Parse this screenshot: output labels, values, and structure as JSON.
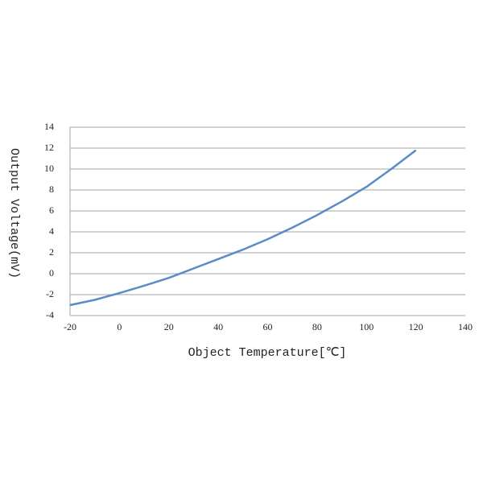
{
  "chart_data": {
    "type": "line",
    "x_label": "Object Temperature[℃]",
    "y_label": "Output Voltage(mV)",
    "x": [
      -20,
      -10,
      0,
      10,
      20,
      30,
      40,
      50,
      60,
      70,
      80,
      90,
      100,
      110,
      120
    ],
    "series": [
      {
        "color": "#5b8bc6",
        "values": [
          -3.0,
          -2.5,
          -1.85,
          -1.15,
          -0.4,
          0.5,
          1.4,
          2.3,
          3.3,
          4.4,
          5.6,
          6.9,
          8.3,
          10.0,
          11.8
        ]
      }
    ],
    "xlim": [
      -20,
      140
    ],
    "xticks": [
      -20,
      0,
      20,
      40,
      60,
      80,
      100,
      120,
      140
    ],
    "ylim": [
      -4,
      14
    ],
    "yticks": [
      -4,
      -2,
      0,
      2,
      4,
      6,
      8,
      10,
      12,
      14
    ],
    "grid": true
  }
}
